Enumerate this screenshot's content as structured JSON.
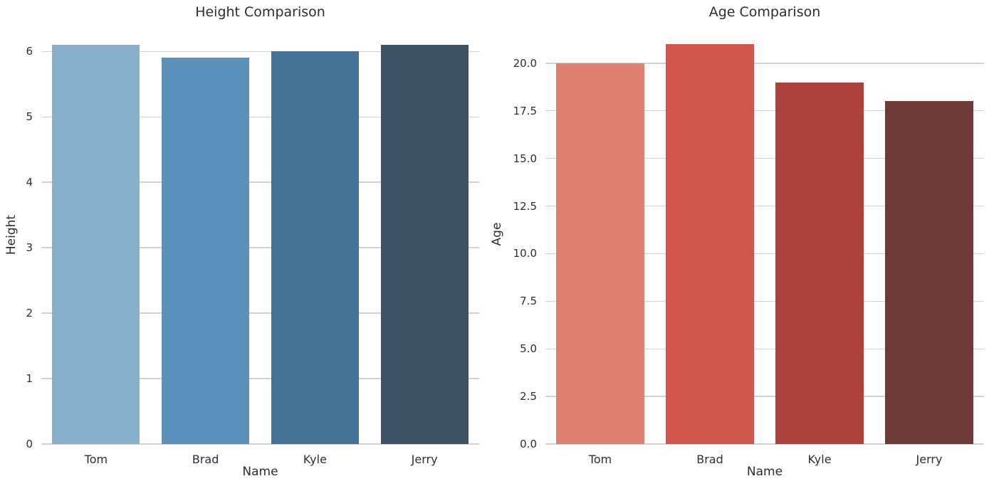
{
  "figure": {
    "background_color": "#ffffff",
    "text_color": "#2d2d2d",
    "grid_color": "#d2d2d2"
  },
  "chart_data": [
    {
      "type": "bar",
      "title": "Height Comparison",
      "xlabel": "Name",
      "ylabel": "Height",
      "categories": [
        "Tom",
        "Brad",
        "Kyle",
        "Jerry"
      ],
      "values": [
        6.1,
        5.9,
        6.0,
        6.1
      ],
      "bar_colors": [
        "#87aecb",
        "#5a91bc",
        "#447396",
        "#3b5166"
      ],
      "yticks": [
        0,
        1,
        2,
        3,
        4,
        5,
        6
      ],
      "ytick_labels": [
        "0",
        "1",
        "2",
        "3",
        "4",
        "5",
        "6"
      ],
      "ylim": [
        0,
        6.405
      ],
      "grid": "horizontal",
      "legend": "none"
    },
    {
      "type": "bar",
      "title": "Age Comparison",
      "xlabel": "Name",
      "ylabel": "Age",
      "categories": [
        "Tom",
        "Brad",
        "Kyle",
        "Jerry"
      ],
      "values": [
        20,
        21,
        19,
        18
      ],
      "bar_colors": [
        "#dd806f",
        "#d0554a",
        "#ac423b",
        "#6f3a35"
      ],
      "yticks": [
        0,
        2.5,
        5,
        7.5,
        10,
        12.5,
        15,
        17.5,
        20
      ],
      "ytick_labels": [
        "0.0",
        "2.5",
        "5.0",
        "7.5",
        "10.0",
        "12.5",
        "15.0",
        "17.5",
        "20.0"
      ],
      "ylim": [
        0,
        22.05
      ],
      "grid": "horizontal",
      "legend": "none"
    }
  ]
}
